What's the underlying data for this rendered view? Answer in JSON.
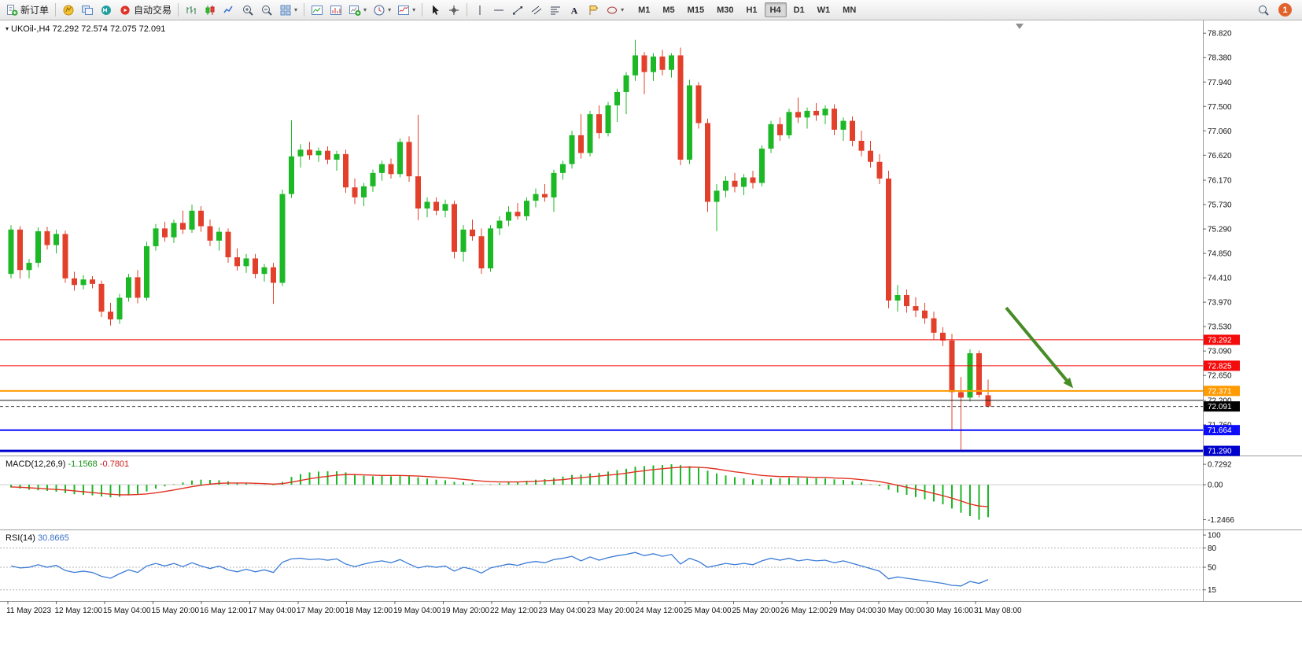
{
  "toolbar": {
    "new_order_label": "新订单",
    "autotrade_label": "自动交易",
    "timeframes": [
      "M1",
      "M5",
      "M15",
      "M30",
      "H1",
      "H4",
      "D1",
      "W1",
      "MN"
    ],
    "active_timeframe": "H4",
    "notification_count": "1"
  },
  "chart": {
    "title": "UKOil-,H4 72.292 72.574 72.075 72.091",
    "symbol": "UKOil-",
    "period": "H4",
    "open": "72.292",
    "high": "72.574",
    "low": "72.075",
    "close": "72.091"
  },
  "macd": {
    "label": "MACD(12,26,9)",
    "value": "-1.1568",
    "signal_value": "-0.7801"
  },
  "rsi": {
    "label": "RSI(14)",
    "value": "30.8665"
  },
  "colors": {
    "bull": "#1cb826",
    "bear": "#e3402c",
    "macd_hist": "#1cb826",
    "macd_signal": "#e03222",
    "rsi": "#3b7bd6",
    "arrow": "#478c26",
    "bid_tag": "#000000"
  },
  "chart_data": [
    {
      "type": "candlestick",
      "title": "UKOil-,H4",
      "ylim": [
        71.22,
        79.05
      ],
      "x_labels": [
        "11 May 2023",
        "12 May 12:00",
        "15 May 04:00",
        "15 May 20:00",
        "16 May 12:00",
        "17 May 04:00",
        "17 May 20:00",
        "18 May 12:00",
        "19 May 04:00",
        "19 May 20:00",
        "22 May 12:00",
        "23 May 04:00",
        "23 May 20:00",
        "24 May 12:00",
        "25 May 04:00",
        "25 May 20:00",
        "26 May 12:00",
        "29 May 04:00",
        "30 May 00:00",
        "30 May 16:00",
        "31 May 08:00"
      ],
      "y_ticks": [
        {
          "l": "78.820",
          "v": 78.82
        },
        {
          "l": "78.380",
          "v": 78.38
        },
        {
          "l": "77.940",
          "v": 77.94
        },
        {
          "l": "77.500",
          "v": 77.5
        },
        {
          "l": "77.060",
          "v": 77.06
        },
        {
          "l": "76.620",
          "v": 76.62
        },
        {
          "l": "76.170",
          "v": 76.17
        },
        {
          "l": "75.730",
          "v": 75.73
        },
        {
          "l": "75.290",
          "v": 75.29
        },
        {
          "l": "74.850",
          "v": 74.85
        },
        {
          "l": "74.410",
          "v": 74.41
        },
        {
          "l": "73.970",
          "v": 73.97
        },
        {
          "l": "73.530",
          "v": 73.53
        },
        {
          "l": "73.090",
          "v": 73.09
        },
        {
          "l": "72.650",
          "v": 72.65
        },
        {
          "l": "72.200",
          "v": 72.2
        },
        {
          "l": "71.760",
          "v": 71.76
        }
      ],
      "candles": [
        [
          74.48,
          75.36,
          74.4,
          75.28
        ],
        [
          75.28,
          75.34,
          74.4,
          74.55
        ],
        [
          74.55,
          74.75,
          74.4,
          74.68
        ],
        [
          74.68,
          75.32,
          74.6,
          75.25
        ],
        [
          75.25,
          75.33,
          74.92,
          75.0
        ],
        [
          75.0,
          75.28,
          74.85,
          75.2
        ],
        [
          75.2,
          75.26,
          74.32,
          74.4
        ],
        [
          74.4,
          74.52,
          74.18,
          74.28
        ],
        [
          74.28,
          74.46,
          74.2,
          74.38
        ],
        [
          74.38,
          74.44,
          74.22,
          74.3
        ],
        [
          74.3,
          74.36,
          73.7,
          73.8
        ],
        [
          73.8,
          73.96,
          73.55,
          73.66
        ],
        [
          73.66,
          74.12,
          73.58,
          74.05
        ],
        [
          74.05,
          74.48,
          73.98,
          74.42
        ],
        [
          74.42,
          74.55,
          73.95,
          74.05
        ],
        [
          74.05,
          75.06,
          74.0,
          74.98
        ],
        [
          74.98,
          75.38,
          74.9,
          75.3
        ],
        [
          75.3,
          75.42,
          75.06,
          75.14
        ],
        [
          75.14,
          75.46,
          75.04,
          75.4
        ],
        [
          75.4,
          75.62,
          75.2,
          75.28
        ],
        [
          75.28,
          75.73,
          75.22,
          75.62
        ],
        [
          75.62,
          75.7,
          75.24,
          75.34
        ],
        [
          75.34,
          75.46,
          74.98,
          75.08
        ],
        [
          75.08,
          75.32,
          74.9,
          75.24
        ],
        [
          75.24,
          75.3,
          74.68,
          74.78
        ],
        [
          74.78,
          74.94,
          74.54,
          74.62
        ],
        [
          74.62,
          74.84,
          74.5,
          74.76
        ],
        [
          74.76,
          74.84,
          74.4,
          74.48
        ],
        [
          74.48,
          74.66,
          74.34,
          74.6
        ],
        [
          74.6,
          74.68,
          73.94,
          74.32
        ],
        [
          74.32,
          76.0,
          74.26,
          75.92
        ],
        [
          75.92,
          77.25,
          75.85,
          76.6
        ],
        [
          76.6,
          76.82,
          76.4,
          76.72
        ],
        [
          76.72,
          76.86,
          76.54,
          76.62
        ],
        [
          76.62,
          76.76,
          76.5,
          76.7
        ],
        [
          76.7,
          76.78,
          76.46,
          76.54
        ],
        [
          76.54,
          76.7,
          76.34,
          76.64
        ],
        [
          76.64,
          76.72,
          75.94,
          76.04
        ],
        [
          76.04,
          76.2,
          75.74,
          75.86
        ],
        [
          75.86,
          76.12,
          75.7,
          76.06
        ],
        [
          76.06,
          76.36,
          75.96,
          76.3
        ],
        [
          76.3,
          76.52,
          76.16,
          76.46
        ],
        [
          76.46,
          76.56,
          76.2,
          76.28
        ],
        [
          76.28,
          76.92,
          76.22,
          76.86
        ],
        [
          76.86,
          76.96,
          76.14,
          76.24
        ],
        [
          76.24,
          77.35,
          75.45,
          75.66
        ],
        [
          75.66,
          75.86,
          75.5,
          75.78
        ],
        [
          75.78,
          75.86,
          75.54,
          75.62
        ],
        [
          75.62,
          75.82,
          75.5,
          75.74
        ],
        [
          75.74,
          75.8,
          74.76,
          74.88
        ],
        [
          74.88,
          75.36,
          74.7,
          75.28
        ],
        [
          75.28,
          75.46,
          75.08,
          75.16
        ],
        [
          75.16,
          75.3,
          74.48,
          74.58
        ],
        [
          74.58,
          75.36,
          74.52,
          75.3
        ],
        [
          75.3,
          75.52,
          75.18,
          75.44
        ],
        [
          75.44,
          75.7,
          75.34,
          75.6
        ],
        [
          75.6,
          75.76,
          75.46,
          75.52
        ],
        [
          75.52,
          75.86,
          75.44,
          75.8
        ],
        [
          75.8,
          76.02,
          75.68,
          75.92
        ],
        [
          75.92,
          76.1,
          75.78,
          75.86
        ],
        [
          75.86,
          76.36,
          75.6,
          76.3
        ],
        [
          76.3,
          76.52,
          76.18,
          76.46
        ],
        [
          76.46,
          77.06,
          76.38,
          76.98
        ],
        [
          76.98,
          77.36,
          76.56,
          76.66
        ],
        [
          76.66,
          77.42,
          76.6,
          77.36
        ],
        [
          77.36,
          77.52,
          76.92,
          77.02
        ],
        [
          77.02,
          77.58,
          76.96,
          77.52
        ],
        [
          77.52,
          77.82,
          77.22,
          77.76
        ],
        [
          77.76,
          78.12,
          77.36,
          78.06
        ],
        [
          78.06,
          78.7,
          77.96,
          78.42
        ],
        [
          78.42,
          78.48,
          77.72,
          78.12
        ],
        [
          78.12,
          78.46,
          77.96,
          78.4
        ],
        [
          78.4,
          78.52,
          78.06,
          78.16
        ],
        [
          78.16,
          78.46,
          78.02,
          78.42
        ],
        [
          78.42,
          78.56,
          76.44,
          76.54
        ],
        [
          76.54,
          77.98,
          76.46,
          77.88
        ],
        [
          77.88,
          77.94,
          77.1,
          77.2
        ],
        [
          77.2,
          77.28,
          75.6,
          75.78
        ],
        [
          75.78,
          76.1,
          75.25,
          75.98
        ],
        [
          75.98,
          76.24,
          75.86,
          76.16
        ],
        [
          76.16,
          76.3,
          75.95,
          76.05
        ],
        [
          76.05,
          76.28,
          75.9,
          76.22
        ],
        [
          76.22,
          76.34,
          76.02,
          76.12
        ],
        [
          76.12,
          76.8,
          76.06,
          76.74
        ],
        [
          76.74,
          77.24,
          76.66,
          77.18
        ],
        [
          77.18,
          77.3,
          76.88,
          76.98
        ],
        [
          76.98,
          77.46,
          76.92,
          77.4
        ],
        [
          77.4,
          77.66,
          77.2,
          77.3
        ],
        [
          77.3,
          77.48,
          77.1,
          77.42
        ],
        [
          77.42,
          77.56,
          77.24,
          77.34
        ],
        [
          77.34,
          77.52,
          77.18,
          77.46
        ],
        [
          77.46,
          77.54,
          76.98,
          77.08
        ],
        [
          77.08,
          77.3,
          76.88,
          77.24
        ],
        [
          77.24,
          77.32,
          76.78,
          76.88
        ],
        [
          76.88,
          77.06,
          76.6,
          76.7
        ],
        [
          76.7,
          76.88,
          76.4,
          76.5
        ],
        [
          76.5,
          76.64,
          76.1,
          76.2
        ],
        [
          76.2,
          76.34,
          73.86,
          74.0
        ],
        [
          74.0,
          74.28,
          73.8,
          74.1
        ],
        [
          74.1,
          74.2,
          73.78,
          73.9
        ],
        [
          73.9,
          74.06,
          73.7,
          73.82
        ],
        [
          73.82,
          73.96,
          73.58,
          73.68
        ],
        [
          73.68,
          73.8,
          73.3,
          73.42
        ],
        [
          73.42,
          73.52,
          73.18,
          73.28
        ],
        [
          73.28,
          73.4,
          71.66,
          72.35
        ],
        [
          72.35,
          72.62,
          71.29,
          72.25
        ],
        [
          72.25,
          73.12,
          72.18,
          73.05
        ],
        [
          73.05,
          73.1,
          72.25,
          72.3
        ],
        [
          72.292,
          72.574,
          72.075,
          72.091
        ]
      ],
      "hlines": [
        {
          "l": "73.292",
          "v": 73.292,
          "c": "#f40b0b",
          "w": 1,
          "tag": true
        },
        {
          "l": "72.825",
          "v": 72.825,
          "c": "#f40b0b",
          "w": 1,
          "tag": true
        },
        {
          "l": "72.371",
          "v": 72.371,
          "c": "#ff9a00",
          "w": 2,
          "tag": true
        },
        {
          "l": "72.200",
          "v": 72.2,
          "c": "#1a1a1a",
          "w": 1,
          "tag": false
        },
        {
          "l": "71.664",
          "v": 71.664,
          "c": "#0d0dfa",
          "w": 2,
          "tag": true
        },
        {
          "l": "71.290",
          "v": 71.29,
          "c": "#0000cc",
          "w": 3,
          "tag": true
        }
      ],
      "bid_line": {
        "l": "72.091",
        "v": 72.091,
        "c": "#3a3a3a",
        "tag_bg": "#000000"
      },
      "annotations": [
        {
          "type": "arrow",
          "from": {
            "bar": 110,
            "price": 73.87
          },
          "to": {
            "bar": 117.4,
            "price": 72.42
          },
          "color": "#478c26",
          "width": 4
        }
      ]
    },
    {
      "type": "bar",
      "name": "MACD(12,26,9)",
      "ylim": [
        -1.4,
        0.9
      ],
      "y_ticks": [
        {
          "l": "0.7292",
          "v": 0.7292
        },
        {
          "l": "0.00",
          "v": 0
        },
        {
          "l": "-1.2466",
          "v": -1.2466
        }
      ],
      "values": [
        -0.1,
        -0.14,
        -0.18,
        -0.2,
        -0.22,
        -0.25,
        -0.3,
        -0.34,
        -0.36,
        -0.38,
        -0.42,
        -0.45,
        -0.43,
        -0.38,
        -0.33,
        -0.24,
        -0.14,
        -0.06,
        0.02,
        0.08,
        0.15,
        0.18,
        0.17,
        0.16,
        0.12,
        0.07,
        0.04,
        0.01,
        -0.01,
        -0.02,
        0.1,
        0.28,
        0.38,
        0.44,
        0.47,
        0.48,
        0.48,
        0.44,
        0.37,
        0.32,
        0.3,
        0.31,
        0.3,
        0.33,
        0.3,
        0.26,
        0.22,
        0.18,
        0.16,
        0.1,
        0.09,
        0.06,
        0.01,
        0.02,
        0.05,
        0.09,
        0.11,
        0.14,
        0.18,
        0.2,
        0.24,
        0.29,
        0.35,
        0.36,
        0.4,
        0.42,
        0.47,
        0.52,
        0.57,
        0.64,
        0.66,
        0.69,
        0.7,
        0.7292,
        0.7,
        0.66,
        0.6,
        0.5,
        0.4,
        0.33,
        0.27,
        0.23,
        0.19,
        0.19,
        0.22,
        0.23,
        0.25,
        0.25,
        0.24,
        0.23,
        0.22,
        0.19,
        0.17,
        0.13,
        0.08,
        0.02,
        -0.05,
        -0.18,
        -0.28,
        -0.36,
        -0.44,
        -0.52,
        -0.6,
        -0.7,
        -0.85,
        -1.0,
        -1.12,
        -1.2466,
        -1.1568
      ],
      "signal": [
        -0.08,
        -0.09,
        -0.11,
        -0.13,
        -0.15,
        -0.17,
        -0.19,
        -0.22,
        -0.25,
        -0.28,
        -0.31,
        -0.34,
        -0.36,
        -0.36,
        -0.35,
        -0.33,
        -0.29,
        -0.24,
        -0.19,
        -0.13,
        -0.07,
        -0.02,
        0.02,
        0.05,
        0.06,
        0.06,
        0.06,
        0.05,
        0.04,
        0.02,
        0.04,
        0.09,
        0.15,
        0.21,
        0.26,
        0.3,
        0.34,
        0.36,
        0.36,
        0.35,
        0.34,
        0.33,
        0.33,
        0.33,
        0.32,
        0.31,
        0.29,
        0.27,
        0.25,
        0.22,
        0.19,
        0.16,
        0.13,
        0.11,
        0.1,
        0.1,
        0.1,
        0.11,
        0.12,
        0.14,
        0.16,
        0.18,
        0.22,
        0.25,
        0.28,
        0.31,
        0.34,
        0.37,
        0.41,
        0.46,
        0.5,
        0.54,
        0.57,
        0.6,
        0.62,
        0.63,
        0.62,
        0.6,
        0.56,
        0.51,
        0.46,
        0.42,
        0.37,
        0.33,
        0.31,
        0.29,
        0.29,
        0.28,
        0.27,
        0.26,
        0.26,
        0.24,
        0.23,
        0.21,
        0.18,
        0.15,
        0.11,
        0.05,
        -0.02,
        -0.09,
        -0.16,
        -0.23,
        -0.31,
        -0.39,
        -0.48,
        -0.58,
        -0.69,
        -0.76,
        -0.7801
      ]
    },
    {
      "type": "line",
      "name": "RSI(14)",
      "ylim": [
        0,
        105
      ],
      "y_ticks": [
        {
          "l": "100",
          "v": 100
        },
        {
          "l": "80",
          "v": 80
        },
        {
          "l": "50",
          "v": 50
        },
        {
          "l": "15",
          "v": 15
        }
      ],
      "levels": [
        80,
        50,
        15
      ],
      "values": [
        52,
        49,
        50,
        54,
        50,
        53,
        45,
        42,
        44,
        42,
        36,
        33,
        40,
        46,
        42,
        52,
        56,
        52,
        56,
        51,
        57,
        52,
        48,
        52,
        46,
        43,
        47,
        43,
        46,
        42,
        58,
        63,
        64,
        62,
        63,
        61,
        63,
        55,
        51,
        55,
        58,
        60,
        57,
        62,
        55,
        49,
        52,
        50,
        52,
        44,
        50,
        47,
        41,
        49,
        52,
        55,
        53,
        57,
        59,
        57,
        62,
        64,
        67,
        60,
        66,
        61,
        65,
        68,
        70,
        73,
        68,
        71,
        67,
        70,
        55,
        64,
        59,
        50,
        53,
        56,
        54,
        56,
        54,
        60,
        64,
        61,
        64,
        60,
        62,
        60,
        61,
        57,
        60,
        56,
        52,
        48,
        44,
        32,
        35,
        33,
        31,
        29,
        27,
        25,
        22,
        21,
        28,
        25,
        30.8665
      ]
    }
  ]
}
